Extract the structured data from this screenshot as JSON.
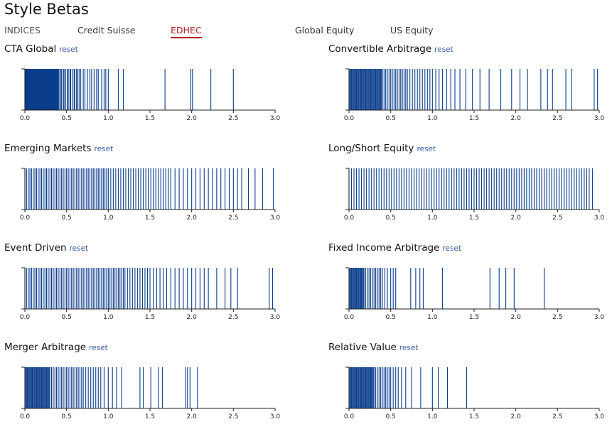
{
  "page": {
    "title": "Style Betas"
  },
  "tabs": [
    {
      "label": "INDICES"
    },
    {
      "label": "Credit Suisse"
    },
    {
      "label": "EDHEC"
    },
    {
      "label": "Global Equity"
    },
    {
      "label": "US Equity"
    }
  ],
  "bar_color": "#0b3d8c",
  "chart_data": [
    {
      "type": "histogram",
      "title": "CTA Global",
      "reset_label": "reset",
      "xlim": [
        0,
        3
      ],
      "x_ticks": [
        "0.0",
        "0.5",
        "1.0",
        "1.5",
        "2.0",
        "2.5",
        "3.0"
      ],
      "values": [
        0.0,
        0.005,
        0.01,
        0.015,
        0.02,
        0.025,
        0.03,
        0.035,
        0.04,
        0.045,
        0.05,
        0.055,
        0.06,
        0.065,
        0.07,
        0.075,
        0.08,
        0.085,
        0.09,
        0.095,
        0.1,
        0.105,
        0.11,
        0.115,
        0.12,
        0.125,
        0.13,
        0.135,
        0.14,
        0.145,
        0.15,
        0.155,
        0.16,
        0.165,
        0.17,
        0.175,
        0.18,
        0.185,
        0.19,
        0.195,
        0.2,
        0.205,
        0.21,
        0.215,
        0.22,
        0.225,
        0.23,
        0.235,
        0.24,
        0.245,
        0.25,
        0.255,
        0.26,
        0.265,
        0.27,
        0.275,
        0.28,
        0.285,
        0.29,
        0.295,
        0.3,
        0.305,
        0.31,
        0.315,
        0.32,
        0.325,
        0.33,
        0.335,
        0.34,
        0.345,
        0.35,
        0.355,
        0.36,
        0.365,
        0.37,
        0.375,
        0.38,
        0.385,
        0.39,
        0.395,
        0.4,
        0.41,
        0.43,
        0.44,
        0.46,
        0.47,
        0.49,
        0.51,
        0.52,
        0.54,
        0.55,
        0.57,
        0.59,
        0.6,
        0.62,
        0.63,
        0.65,
        0.67,
        0.7,
        0.72,
        0.75,
        0.78,
        0.8,
        0.83,
        0.86,
        0.88,
        0.92,
        0.95,
        0.97,
        1.0,
        1.12,
        1.18,
        1.68,
        1.99,
        2.01,
        2.23,
        2.5
      ]
    },
    {
      "type": "histogram",
      "title": "Convertible Arbitrage",
      "reset_label": "reset",
      "xlim": [
        0,
        3
      ],
      "x_ticks": [
        "0.0",
        "0.5",
        "1.0",
        "1.5",
        "2.0",
        "2.5",
        "3.0"
      ],
      "values": [
        0.0,
        0.01,
        0.02,
        0.03,
        0.04,
        0.05,
        0.06,
        0.07,
        0.08,
        0.09,
        0.1,
        0.11,
        0.12,
        0.13,
        0.14,
        0.15,
        0.16,
        0.17,
        0.18,
        0.19,
        0.2,
        0.21,
        0.22,
        0.23,
        0.24,
        0.25,
        0.26,
        0.27,
        0.28,
        0.29,
        0.3,
        0.31,
        0.32,
        0.33,
        0.34,
        0.35,
        0.36,
        0.37,
        0.38,
        0.39,
        0.4,
        0.42,
        0.44,
        0.46,
        0.48,
        0.5,
        0.52,
        0.54,
        0.56,
        0.58,
        0.6,
        0.62,
        0.64,
        0.66,
        0.68,
        0.7,
        0.73,
        0.76,
        0.79,
        0.82,
        0.85,
        0.88,
        0.91,
        0.94,
        0.97,
        1.0,
        1.04,
        1.08,
        1.12,
        1.17,
        1.22,
        1.27,
        1.33,
        1.4,
        1.48,
        1.57,
        1.68,
        1.82,
        1.95,
        2.05,
        2.14,
        2.3,
        2.38,
        2.44,
        2.6,
        2.67,
        2.94,
        2.98
      ]
    },
    {
      "type": "histogram",
      "title": "Emerging Markets",
      "reset_label": "reset",
      "xlim": [
        0,
        3
      ],
      "x_ticks": [
        "0.0",
        "0.5",
        "1.0",
        "1.5",
        "2.0",
        "2.5",
        "3.0"
      ],
      "values": [
        0.0,
        0.02,
        0.04,
        0.06,
        0.08,
        0.1,
        0.12,
        0.14,
        0.16,
        0.18,
        0.2,
        0.22,
        0.24,
        0.26,
        0.28,
        0.3,
        0.32,
        0.34,
        0.36,
        0.38,
        0.4,
        0.42,
        0.44,
        0.46,
        0.48,
        0.5,
        0.52,
        0.54,
        0.56,
        0.58,
        0.6,
        0.62,
        0.64,
        0.66,
        0.68,
        0.7,
        0.72,
        0.74,
        0.76,
        0.78,
        0.8,
        0.82,
        0.84,
        0.86,
        0.88,
        0.9,
        0.92,
        0.94,
        0.96,
        0.98,
        1.0,
        1.03,
        1.06,
        1.09,
        1.12,
        1.15,
        1.18,
        1.21,
        1.24,
        1.27,
        1.3,
        1.33,
        1.36,
        1.39,
        1.42,
        1.45,
        1.48,
        1.51,
        1.54,
        1.57,
        1.6,
        1.63,
        1.66,
        1.69,
        1.72,
        1.75,
        1.8,
        1.85,
        1.9,
        1.95,
        2.0,
        2.05,
        2.1,
        2.15,
        2.2,
        2.25,
        2.3,
        2.35,
        2.4,
        2.45,
        2.5,
        2.55,
        2.6,
        2.68,
        2.76,
        2.85,
        2.98
      ]
    },
    {
      "type": "histogram",
      "title": "Long/Short Equity",
      "reset_label": "reset",
      "xlim": [
        0,
        3
      ],
      "x_ticks": [
        "0.0",
        "0.5",
        "1.0",
        "1.5",
        "2.0",
        "2.5",
        "3.0"
      ],
      "values": [
        0.0,
        0.03,
        0.06,
        0.09,
        0.12,
        0.15,
        0.18,
        0.21,
        0.24,
        0.27,
        0.3,
        0.33,
        0.36,
        0.39,
        0.42,
        0.45,
        0.48,
        0.51,
        0.54,
        0.57,
        0.6,
        0.63,
        0.66,
        0.69,
        0.72,
        0.75,
        0.78,
        0.81,
        0.84,
        0.87,
        0.9,
        0.93,
        0.96,
        0.99,
        1.02,
        1.05,
        1.08,
        1.11,
        1.14,
        1.17,
        1.2,
        1.23,
        1.26,
        1.29,
        1.32,
        1.35,
        1.38,
        1.41,
        1.44,
        1.47,
        1.5,
        1.53,
        1.56,
        1.59,
        1.62,
        1.65,
        1.68,
        1.71,
        1.74,
        1.77,
        1.8,
        1.83,
        1.86,
        1.89,
        1.92,
        1.95,
        1.98,
        2.01,
        2.04,
        2.07,
        2.1,
        2.13,
        2.16,
        2.19,
        2.22,
        2.25,
        2.28,
        2.31,
        2.34,
        2.37,
        2.4,
        2.43,
        2.46,
        2.49,
        2.52,
        2.55,
        2.58,
        2.61,
        2.64,
        2.67,
        2.7,
        2.73,
        2.76,
        2.79,
        2.82,
        2.85,
        2.88,
        2.92
      ]
    },
    {
      "type": "histogram",
      "title": "Event Driven",
      "reset_label": "reset",
      "xlim": [
        0,
        3
      ],
      "x_ticks": [
        "0.0",
        "0.5",
        "1.0",
        "1.5",
        "2.0",
        "2.5",
        "3.0"
      ],
      "values": [
        0.0,
        0.02,
        0.04,
        0.06,
        0.08,
        0.1,
        0.12,
        0.14,
        0.16,
        0.18,
        0.2,
        0.22,
        0.24,
        0.26,
        0.28,
        0.3,
        0.32,
        0.34,
        0.36,
        0.38,
        0.4,
        0.42,
        0.44,
        0.46,
        0.48,
        0.5,
        0.52,
        0.54,
        0.56,
        0.58,
        0.6,
        0.62,
        0.64,
        0.66,
        0.68,
        0.7,
        0.72,
        0.74,
        0.76,
        0.78,
        0.8,
        0.82,
        0.84,
        0.86,
        0.88,
        0.9,
        0.92,
        0.94,
        0.96,
        0.98,
        1.0,
        1.02,
        1.04,
        1.06,
        1.08,
        1.1,
        1.12,
        1.14,
        1.16,
        1.18,
        1.2,
        1.23,
        1.26,
        1.29,
        1.32,
        1.35,
        1.38,
        1.41,
        1.44,
        1.47,
        1.5,
        1.54,
        1.58,
        1.62,
        1.66,
        1.7,
        1.75,
        1.8,
        1.85,
        1.9,
        1.95,
        2.0,
        2.05,
        2.1,
        2.15,
        2.2,
        2.3,
        2.4,
        2.47,
        2.55,
        2.93,
        2.97
      ]
    },
    {
      "type": "histogram",
      "title": "Fixed Income Arbitrage",
      "reset_label": "reset",
      "xlim": [
        0,
        3
      ],
      "x_ticks": [
        "0.0",
        "0.5",
        "1.0",
        "1.5",
        "2.0",
        "2.5",
        "3.0"
      ],
      "values": [
        0.0,
        0.01,
        0.02,
        0.03,
        0.04,
        0.05,
        0.06,
        0.07,
        0.08,
        0.09,
        0.1,
        0.11,
        0.12,
        0.13,
        0.14,
        0.15,
        0.16,
        0.17,
        0.18,
        0.2,
        0.22,
        0.24,
        0.26,
        0.28,
        0.3,
        0.32,
        0.34,
        0.36,
        0.38,
        0.4,
        0.43,
        0.46,
        0.5,
        0.53,
        0.56,
        0.74,
        0.8,
        0.85,
        0.89,
        1.12,
        1.69,
        1.8,
        1.88,
        1.98,
        2.34
      ]
    },
    {
      "type": "histogram",
      "title": "Merger Arbitrage",
      "reset_label": "reset",
      "xlim": [
        0,
        3
      ],
      "x_ticks": [
        "0.0",
        "0.5",
        "1.0",
        "1.5",
        "2.0",
        "2.5",
        "3.0"
      ],
      "values": [
        0.0,
        0.01,
        0.02,
        0.03,
        0.04,
        0.05,
        0.06,
        0.07,
        0.08,
        0.09,
        0.1,
        0.11,
        0.12,
        0.13,
        0.14,
        0.15,
        0.16,
        0.17,
        0.18,
        0.19,
        0.2,
        0.21,
        0.22,
        0.23,
        0.24,
        0.25,
        0.26,
        0.27,
        0.28,
        0.29,
        0.3,
        0.32,
        0.34,
        0.36,
        0.38,
        0.4,
        0.42,
        0.44,
        0.46,
        0.48,
        0.5,
        0.52,
        0.54,
        0.56,
        0.58,
        0.6,
        0.62,
        0.64,
        0.66,
        0.68,
        0.7,
        0.73,
        0.76,
        0.79,
        0.82,
        0.85,
        0.88,
        0.91,
        0.95,
        1.0,
        1.05,
        1.1,
        1.16,
        1.38,
        1.42,
        1.51,
        1.6,
        1.65,
        1.93,
        1.95,
        1.98,
        2.07
      ]
    },
    {
      "type": "histogram",
      "title": "Relative Value",
      "reset_label": "reset",
      "xlim": [
        0,
        3
      ],
      "x_ticks": [
        "0.0",
        "0.5",
        "1.0",
        "1.5",
        "2.0",
        "2.5",
        "3.0"
      ],
      "values": [
        0.0,
        0.01,
        0.02,
        0.03,
        0.04,
        0.05,
        0.06,
        0.07,
        0.08,
        0.09,
        0.1,
        0.11,
        0.12,
        0.13,
        0.14,
        0.15,
        0.16,
        0.17,
        0.18,
        0.19,
        0.2,
        0.21,
        0.22,
        0.23,
        0.24,
        0.25,
        0.26,
        0.27,
        0.28,
        0.29,
        0.3,
        0.32,
        0.34,
        0.36,
        0.38,
        0.4,
        0.42,
        0.44,
        0.46,
        0.48,
        0.5,
        0.53,
        0.56,
        0.59,
        0.63,
        0.68,
        0.75,
        0.86,
        1.0,
        1.07,
        1.18,
        1.41
      ]
    }
  ]
}
